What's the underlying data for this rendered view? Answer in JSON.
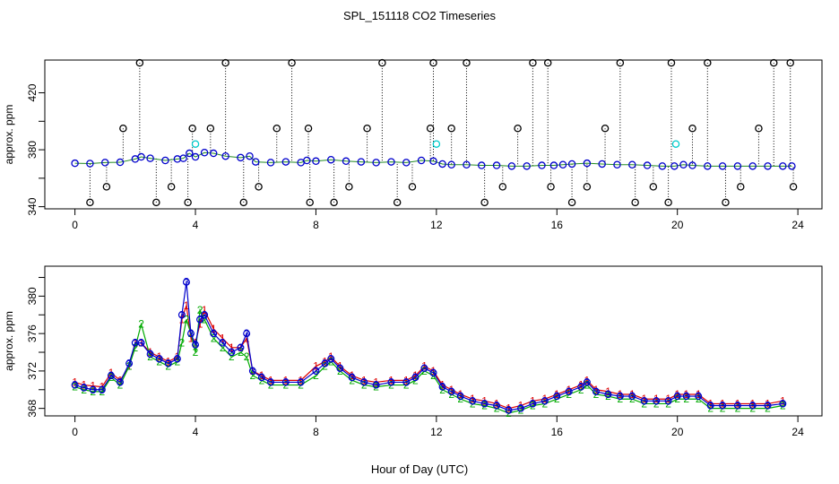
{
  "chart_data": [
    {
      "type": "scatter",
      "title": "SPL_151118  CO2 Timeseries",
      "ylabel": "approx. ppm",
      "xlim": [
        -1,
        24.8
      ],
      "ylim": [
        338.5,
        443
      ],
      "xticks": [
        "0",
        "4",
        "8",
        "12",
        "16",
        "20",
        "24"
      ],
      "yticks": [
        "340",
        "380",
        "420"
      ],
      "grid": false,
      "series": [
        {
          "marker": "o",
          "color": "#0000cc",
          "x": [
            0.0,
            0.5,
            1.0,
            1.5,
            2.0,
            2.2,
            2.5,
            3.0,
            3.4,
            3.6,
            3.8,
            4.0,
            4.3,
            4.6,
            5.0,
            5.5,
            5.8,
            6.0,
            6.5,
            7.0,
            7.5,
            7.7,
            8.0,
            8.5,
            9.0,
            9.5,
            10.0,
            10.5,
            11.0,
            11.5,
            11.9,
            12.2,
            12.5,
            13.0,
            13.5,
            14.0,
            14.5,
            15.0,
            15.5,
            15.9,
            16.2,
            16.5,
            17.0,
            17.5,
            18.0,
            18.5,
            19.0,
            19.5,
            19.9,
            20.2,
            20.5,
            21.0,
            21.5,
            22.0,
            22.5,
            23.0,
            23.5,
            23.8
          ],
          "y": [
            370.5,
            370.3,
            371.0,
            371.2,
            373.5,
            375.0,
            374.0,
            372.5,
            373.5,
            374.0,
            377.5,
            375.0,
            378.0,
            377.5,
            375.5,
            374.5,
            375.5,
            371.5,
            371.0,
            371.5,
            371.0,
            372.5,
            372.0,
            373.0,
            372.0,
            371.5,
            371.0,
            371.5,
            371.0,
            372.5,
            372.0,
            370.0,
            369.5,
            369.5,
            369.0,
            369.0,
            368.5,
            368.5,
            369.0,
            369.0,
            369.5,
            370.0,
            370.5,
            370.0,
            369.5,
            369.5,
            369.0,
            368.5,
            368.5,
            369.5,
            369.0,
            368.5,
            368.5,
            368.5,
            368.5,
            368.5,
            368.5,
            368.5
          ]
        },
        {
          "marker": "o",
          "color": "#000000",
          "x": [
            0.5,
            1.05,
            1.6,
            2.15,
            2.7,
            3.2,
            3.75,
            3.9,
            4.5,
            5.0,
            5.6,
            6.1,
            6.7,
            7.2,
            7.75,
            7.8,
            8.6,
            9.1,
            9.7,
            10.2,
            10.7,
            11.2,
            11.8,
            11.9,
            12.5,
            13.0,
            13.6,
            14.2,
            14.7,
            15.2,
            15.7,
            15.8,
            16.5,
            17.0,
            17.6,
            18.1,
            18.6,
            19.2,
            19.7,
            19.8,
            20.5,
            21.0,
            21.6,
            22.1,
            22.7,
            23.2,
            23.75,
            23.85
          ],
          "y": [
            343,
            354,
            395,
            441,
            343,
            354,
            343,
            395,
            395,
            441,
            343,
            354,
            395,
            441,
            395,
            343,
            343,
            354,
            395,
            441,
            343,
            354,
            395,
            441,
            395,
            441,
            343,
            354,
            395,
            441,
            441,
            354,
            343,
            354,
            395,
            441,
            343,
            354,
            343,
            441,
            395,
            441,
            343,
            354,
            395,
            441,
            441,
            354
          ]
        },
        {
          "marker": "o",
          "color": "#00cccc",
          "x": [
            4.0,
            12.0,
            19.95
          ],
          "y": [
            384,
            384,
            384
          ]
        }
      ]
    },
    {
      "type": "line",
      "ylabel": "approx. ppm",
      "xlabel": "Hour of Day (UTC)",
      "xlim": [
        -1,
        24.8
      ],
      "ylim": [
        367.2,
        383.2
      ],
      "xticks": [
        "0",
        "4",
        "8",
        "12",
        "16",
        "20",
        "24"
      ],
      "yticks": [
        "368",
        "372",
        "376",
        "380"
      ],
      "grid": false,
      "series": [
        {
          "marker": "1",
          "color": "#dd0000",
          "x": [
            0.0,
            0.3,
            0.6,
            0.9,
            1.2,
            1.5,
            1.8,
            2.0,
            2.2,
            2.5,
            2.8,
            3.1,
            3.4,
            3.55,
            3.7,
            3.85,
            4.0,
            4.15,
            4.3,
            4.6,
            4.9,
            5.2,
            5.5,
            5.7,
            5.9,
            6.2,
            6.5,
            7.0,
            7.5,
            8.0,
            8.3,
            8.5,
            8.8,
            9.2,
            9.6,
            10.0,
            10.5,
            11.0,
            11.3,
            11.6,
            11.9,
            12.2,
            12.5,
            12.8,
            13.2,
            13.6,
            14.0,
            14.4,
            14.8,
            15.2,
            15.6,
            16.0,
            16.4,
            16.8,
            17.0,
            17.3,
            17.7,
            18.1,
            18.5,
            18.9,
            19.3,
            19.7,
            20.0,
            20.3,
            20.7,
            21.1,
            21.5,
            22.0,
            22.5,
            23.0,
            23.5
          ],
          "y": [
            370.8,
            370.5,
            370.4,
            370.3,
            371.8,
            371.0,
            372.5,
            375.0,
            375.0,
            374.0,
            373.5,
            373.0,
            373.5,
            377.5,
            379.0,
            375.5,
            375.0,
            377.0,
            378.5,
            376.5,
            375.5,
            374.5,
            374.5,
            375.5,
            372.0,
            371.5,
            371.0,
            371.0,
            371.0,
            372.5,
            373.0,
            373.5,
            372.5,
            371.5,
            371.0,
            370.8,
            371.0,
            371.0,
            371.5,
            372.5,
            372.0,
            370.5,
            370.0,
            369.5,
            369.0,
            368.8,
            368.5,
            368.0,
            368.3,
            368.8,
            369.0,
            369.5,
            370.0,
            370.5,
            371.0,
            370.0,
            369.8,
            369.5,
            369.5,
            369.0,
            369.0,
            369.0,
            369.5,
            369.5,
            369.5,
            368.5,
            368.5,
            368.5,
            368.5,
            368.5,
            368.8
          ]
        },
        {
          "marker": "2",
          "color": "#00aa00",
          "x": [
            0.0,
            0.3,
            0.6,
            0.9,
            1.2,
            1.5,
            1.8,
            2.0,
            2.2,
            2.5,
            2.8,
            3.1,
            3.4,
            3.55,
            3.7,
            3.85,
            4.0,
            4.15,
            4.3,
            4.6,
            4.9,
            5.2,
            5.5,
            5.7,
            5.9,
            6.2,
            6.5,
            7.0,
            7.5,
            8.0,
            8.3,
            8.5,
            8.8,
            9.2,
            9.6,
            10.0,
            10.5,
            11.0,
            11.3,
            11.6,
            11.9,
            12.2,
            12.5,
            12.8,
            13.2,
            13.6,
            14.0,
            14.4,
            14.8,
            15.2,
            15.6,
            16.0,
            16.4,
            16.8,
            17.0,
            17.3,
            17.7,
            18.1,
            18.5,
            18.9,
            19.3,
            19.7,
            20.0,
            20.3,
            20.7,
            21.1,
            21.5,
            22.0,
            22.5,
            23.0,
            23.5
          ],
          "y": [
            370.3,
            370.0,
            369.8,
            369.8,
            371.3,
            370.5,
            372.5,
            374.5,
            377.0,
            373.5,
            373.0,
            372.5,
            373.0,
            375.0,
            377.5,
            376.0,
            374.0,
            378.5,
            377.5,
            375.5,
            374.5,
            373.5,
            374.0,
            373.5,
            371.5,
            371.0,
            370.5,
            370.5,
            370.5,
            371.5,
            372.5,
            373.0,
            372.0,
            371.0,
            370.5,
            370.3,
            370.5,
            370.5,
            371.0,
            372.0,
            371.5,
            370.0,
            369.5,
            369.0,
            368.5,
            368.3,
            368.0,
            367.5,
            367.8,
            368.3,
            368.5,
            369.0,
            369.5,
            370.0,
            370.5,
            369.5,
            369.3,
            369.0,
            369.0,
            368.5,
            368.5,
            368.5,
            369.0,
            369.0,
            369.0,
            368.0,
            368.0,
            368.0,
            368.0,
            368.0,
            368.3
          ]
        },
        {
          "marker": "3",
          "color": "#0000cc",
          "x": [
            0.0,
            0.3,
            0.6,
            0.9,
            1.2,
            1.5,
            1.8,
            2.0,
            2.2,
            2.5,
            2.8,
            3.1,
            3.4,
            3.55,
            3.7,
            3.85,
            4.0,
            4.15,
            4.3,
            4.6,
            4.9,
            5.2,
            5.5,
            5.7,
            5.9,
            6.2,
            6.5,
            7.0,
            7.5,
            8.0,
            8.3,
            8.5,
            8.8,
            9.2,
            9.6,
            10.0,
            10.5,
            11.0,
            11.3,
            11.6,
            11.9,
            12.2,
            12.5,
            12.8,
            13.2,
            13.6,
            14.0,
            14.4,
            14.8,
            15.2,
            15.6,
            16.0,
            16.4,
            16.8,
            17.0,
            17.3,
            17.7,
            18.1,
            18.5,
            18.9,
            19.3,
            19.7,
            20.0,
            20.3,
            20.7,
            21.1,
            21.5,
            22.0,
            22.5,
            23.0,
            23.5
          ],
          "y": [
            370.5,
            370.2,
            370.0,
            370.0,
            371.5,
            370.8,
            372.8,
            375.0,
            375.0,
            373.8,
            373.3,
            372.8,
            373.3,
            378.0,
            381.5,
            376.0,
            374.8,
            377.5,
            378.0,
            376.0,
            375.0,
            374.0,
            374.5,
            376.0,
            372.0,
            371.3,
            370.8,
            370.8,
            370.8,
            372.0,
            372.8,
            373.3,
            372.3,
            371.3,
            370.8,
            370.5,
            370.8,
            370.8,
            371.3,
            372.3,
            371.8,
            370.3,
            369.8,
            369.3,
            368.8,
            368.5,
            368.3,
            367.8,
            368.0,
            368.5,
            368.8,
            369.3,
            369.8,
            370.3,
            370.8,
            369.8,
            369.5,
            369.3,
            369.3,
            368.8,
            368.8,
            368.8,
            369.3,
            369.3,
            369.3,
            368.3,
            368.3,
            368.3,
            368.3,
            368.3,
            368.5
          ]
        }
      ]
    }
  ]
}
